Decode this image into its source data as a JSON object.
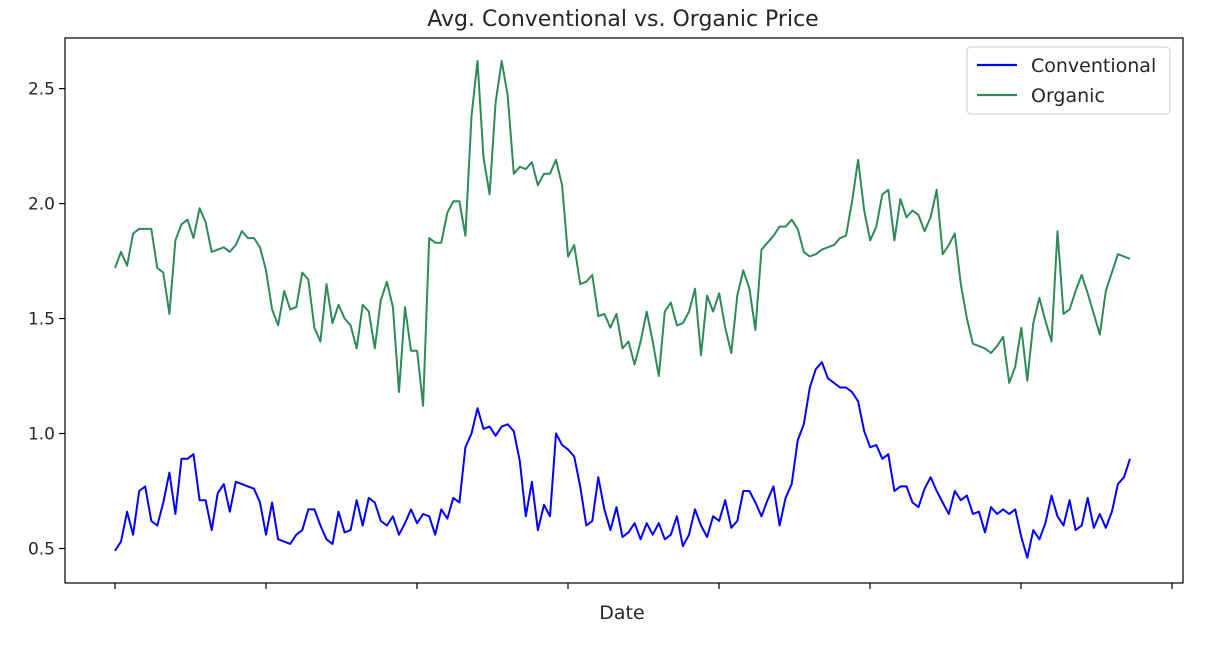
{
  "chart_data": {
    "type": "line",
    "title": "Avg. Conventional vs. Organic Price",
    "xlabel": "Date",
    "ylabel": "",
    "ylim": [
      0.35,
      2.72
    ],
    "yticks": [
      "0.5",
      "1.0",
      "1.5",
      "2.0",
      "2.5"
    ],
    "x_tick_count": 8,
    "x_tick_labels_shown": false,
    "grid": false,
    "legend_position": "top-right",
    "x": [
      0,
      1,
      2,
      3,
      4,
      5,
      6,
      7,
      8,
      9,
      10,
      11,
      12,
      13,
      14,
      15,
      16,
      17,
      18,
      19,
      20,
      21,
      22,
      23,
      24,
      25,
      26,
      27,
      28,
      29,
      30,
      31,
      32,
      33,
      34,
      35,
      36,
      37,
      38,
      39,
      40,
      41,
      42,
      43,
      44,
      45,
      46,
      47,
      48,
      49,
      50,
      51,
      52,
      53,
      54,
      55,
      56,
      57,
      58,
      59,
      60,
      61,
      62,
      63,
      64,
      65,
      66,
      67,
      68,
      69,
      70,
      71,
      72,
      73,
      74,
      75,
      76,
      77,
      78,
      79,
      80,
      81,
      82,
      83,
      84,
      85,
      86,
      87,
      88,
      89,
      90,
      91,
      92,
      93,
      94,
      95,
      96,
      97,
      98,
      99,
      100,
      101,
      102,
      103,
      104,
      105,
      106,
      107,
      108,
      109,
      110,
      111,
      112,
      113,
      114,
      115,
      116,
      117,
      118,
      119,
      120,
      121,
      122,
      123,
      124,
      125,
      126,
      127,
      128,
      129,
      130,
      131,
      132,
      133,
      134,
      135,
      136,
      137,
      138,
      139,
      140,
      141,
      142,
      143,
      144,
      145,
      146,
      147,
      148,
      149,
      150,
      151,
      152,
      153,
      154,
      155,
      156,
      157,
      158,
      159,
      160,
      161,
      162,
      163,
      164,
      165,
      166,
      167,
      168
    ],
    "series": [
      {
        "name": "Conventional",
        "color": "#0000ff",
        "values": [
          0.49,
          0.53,
          0.66,
          0.56,
          0.75,
          0.77,
          0.62,
          0.6,
          0.7,
          0.83,
          0.65,
          0.89,
          0.89,
          0.91,
          0.71,
          0.71,
          0.58,
          0.74,
          0.78,
          0.66,
          0.79,
          0.78,
          0.77,
          0.76,
          0.7,
          0.56,
          0.7,
          0.54,
          0.53,
          0.52,
          0.56,
          0.58,
          0.67,
          0.67,
          0.6,
          0.54,
          0.52,
          0.66,
          0.57,
          0.58,
          0.71,
          0.6,
          0.72,
          0.7,
          0.62,
          0.6,
          0.64,
          0.56,
          0.61,
          0.67,
          0.61,
          0.65,
          0.64,
          0.56,
          0.67,
          0.63,
          0.72,
          0.7,
          0.94,
          1.0,
          1.11,
          1.02,
          1.03,
          0.99,
          1.03,
          1.04,
          1.01,
          0.88,
          0.64,
          0.79,
          0.58,
          0.69,
          0.64,
          1.0,
          0.95,
          0.93,
          0.9,
          0.77,
          0.6,
          0.62,
          0.81,
          0.67,
          0.58,
          0.68,
          0.55,
          0.57,
          0.61,
          0.54,
          0.61,
          0.56,
          0.61,
          0.54,
          0.56,
          0.64,
          0.51,
          0.56,
          0.67,
          0.6,
          0.55,
          0.64,
          0.62,
          0.71,
          0.59,
          0.62,
          0.75,
          0.75,
          0.7,
          0.64,
          0.71,
          0.77,
          0.6,
          0.72,
          0.78,
          0.97,
          1.04,
          1.2,
          1.28,
          1.31,
          1.24,
          1.22,
          1.2,
          1.2,
          1.18,
          1.14,
          1.01,
          0.94,
          0.95,
          0.89,
          0.91,
          0.75,
          0.77,
          0.77,
          0.7,
          0.68,
          0.76,
          0.81,
          0.75,
          0.7,
          0.65,
          0.75,
          0.71,
          0.73,
          0.65,
          0.66,
          0.57,
          0.68,
          0.65,
          0.67,
          0.65,
          0.67,
          0.55,
          0.46,
          0.58,
          0.54,
          0.61,
          0.73,
          0.64,
          0.6,
          0.71,
          0.58,
          0.6,
          0.72,
          0.59,
          0.65,
          0.59,
          0.66,
          0.78,
          0.81,
          0.89
        ]
      },
      {
        "name": "Organic",
        "color": "#2e8b57",
        "values": [
          1.72,
          1.79,
          1.73,
          1.87,
          1.89,
          1.89,
          1.89,
          1.72,
          1.7,
          1.52,
          1.84,
          1.91,
          1.93,
          1.85,
          1.98,
          1.92,
          1.79,
          1.8,
          1.81,
          1.79,
          1.82,
          1.88,
          1.85,
          1.85,
          1.81,
          1.71,
          1.54,
          1.47,
          1.62,
          1.54,
          1.55,
          1.7,
          1.67,
          1.46,
          1.4,
          1.65,
          1.48,
          1.56,
          1.5,
          1.47,
          1.37,
          1.56,
          1.53,
          1.37,
          1.58,
          1.66,
          1.55,
          1.18,
          1.55,
          1.36,
          1.36,
          1.12,
          1.85,
          1.83,
          1.83,
          1.96,
          2.01,
          2.01,
          1.86,
          2.38,
          2.62,
          2.2,
          2.04,
          2.44,
          2.62,
          2.47,
          2.13,
          2.16,
          2.15,
          2.18,
          2.08,
          2.13,
          2.13,
          2.19,
          2.08,
          1.77,
          1.82,
          1.65,
          1.66,
          1.69,
          1.51,
          1.52,
          1.46,
          1.52,
          1.37,
          1.4,
          1.3,
          1.4,
          1.53,
          1.4,
          1.25,
          1.53,
          1.57,
          1.47,
          1.48,
          1.53,
          1.63,
          1.34,
          1.6,
          1.53,
          1.61,
          1.46,
          1.35,
          1.6,
          1.71,
          1.63,
          1.45,
          1.8,
          1.83,
          1.86,
          1.9,
          1.9,
          1.93,
          1.89,
          1.79,
          1.77,
          1.78,
          1.8,
          1.81,
          1.82,
          1.85,
          1.86,
          2.01,
          2.19,
          1.97,
          1.84,
          1.9,
          2.04,
          2.06,
          1.84,
          2.02,
          1.94,
          1.97,
          1.95,
          1.88,
          1.94,
          2.06,
          1.78,
          1.82,
          1.87,
          1.65,
          1.5,
          1.39,
          1.38,
          1.37,
          1.35,
          1.38,
          1.42,
          1.22,
          1.29,
          1.46,
          1.23,
          1.48,
          1.59,
          1.49,
          1.4,
          1.88,
          1.52,
          1.54,
          1.62,
          1.69,
          1.61,
          1.52,
          1.43,
          1.62,
          1.7,
          1.78,
          1.77,
          1.76
        ]
      }
    ]
  }
}
